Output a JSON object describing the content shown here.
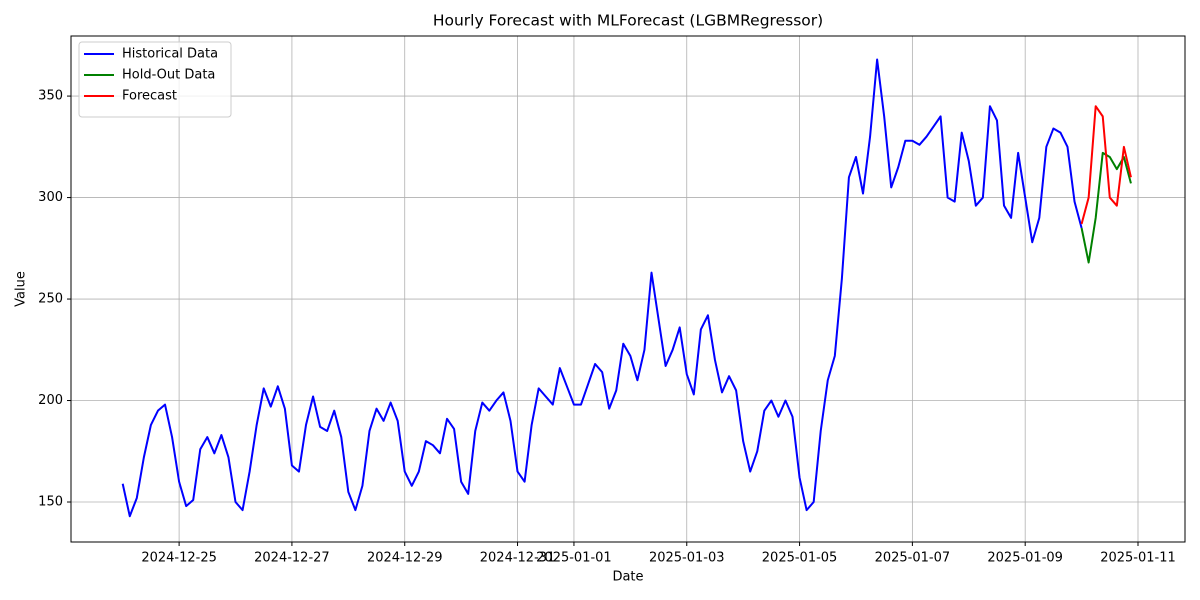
{
  "chart_data": {
    "type": "line",
    "title": "Hourly Forecast with MLForecast (LGBMRegressor)",
    "x_label": "Date",
    "y_label": "Value",
    "xlim": [
      "2024-12-23 02:00",
      "2025-01-11 20:00"
    ],
    "xticks": [
      "2024-12-25",
      "2024-12-27",
      "2024-12-29",
      "2024-12-31",
      "2025-01-01",
      "2025-01-03",
      "2025-01-05",
      "2025-01-07",
      "2025-01-09",
      "2025-01-11"
    ],
    "ylim": [
      130.3,
      379.6
    ],
    "yticks": [
      150,
      200,
      250,
      300,
      350
    ],
    "grid": true,
    "legend": "upper left",
    "series": [
      {
        "name": "Historical Data",
        "color": "#0000ff",
        "x": [
          "2024-12-24 00:00",
          "2024-12-24 03:00",
          "2024-12-24 06:00",
          "2024-12-24 09:00",
          "2024-12-24 12:00",
          "2024-12-24 15:00",
          "2024-12-24 18:00",
          "2024-12-24 21:00",
          "2024-12-25 00:00",
          "2024-12-25 03:00",
          "2024-12-25 06:00",
          "2024-12-25 09:00",
          "2024-12-25 12:00",
          "2024-12-25 15:00",
          "2024-12-25 18:00",
          "2024-12-25 21:00",
          "2024-12-26 00:00",
          "2024-12-26 03:00",
          "2024-12-26 06:00",
          "2024-12-26 09:00",
          "2024-12-26 12:00",
          "2024-12-26 15:00",
          "2024-12-26 18:00",
          "2024-12-26 21:00",
          "2024-12-27 00:00",
          "2024-12-27 03:00",
          "2024-12-27 06:00",
          "2024-12-27 09:00",
          "2024-12-27 12:00",
          "2024-12-27 15:00",
          "2024-12-27 18:00",
          "2024-12-27 21:00",
          "2024-12-28 00:00",
          "2024-12-28 03:00",
          "2024-12-28 06:00",
          "2024-12-28 09:00",
          "2024-12-28 12:00",
          "2024-12-28 15:00",
          "2024-12-28 18:00",
          "2024-12-28 21:00",
          "2024-12-29 00:00",
          "2024-12-29 03:00",
          "2024-12-29 06:00",
          "2024-12-29 09:00",
          "2024-12-29 12:00",
          "2024-12-29 15:00",
          "2024-12-29 18:00",
          "2024-12-29 21:00",
          "2024-12-30 00:00",
          "2024-12-30 03:00",
          "2024-12-30 06:00",
          "2024-12-30 09:00",
          "2024-12-30 12:00",
          "2024-12-30 15:00",
          "2024-12-30 18:00",
          "2024-12-30 21:00",
          "2024-12-31 00:00",
          "2024-12-31 03:00",
          "2024-12-31 06:00",
          "2024-12-31 09:00",
          "2024-12-31 12:00",
          "2024-12-31 15:00",
          "2024-12-31 18:00",
          "2024-12-31 21:00",
          "2025-01-01 00:00",
          "2025-01-01 03:00",
          "2025-01-01 06:00",
          "2025-01-01 09:00",
          "2025-01-01 12:00",
          "2025-01-01 15:00",
          "2025-01-01 18:00",
          "2025-01-01 21:00",
          "2025-01-02 00:00",
          "2025-01-02 03:00",
          "2025-01-02 06:00",
          "2025-01-02 09:00",
          "2025-01-02 12:00",
          "2025-01-02 15:00",
          "2025-01-02 18:00",
          "2025-01-02 21:00",
          "2025-01-03 00:00",
          "2025-01-03 03:00",
          "2025-01-03 06:00",
          "2025-01-03 09:00",
          "2025-01-03 12:00",
          "2025-01-03 15:00",
          "2025-01-03 18:00",
          "2025-01-03 21:00",
          "2025-01-04 00:00",
          "2025-01-04 03:00",
          "2025-01-04 06:00",
          "2025-01-04 09:00",
          "2025-01-04 12:00",
          "2025-01-04 15:00",
          "2025-01-04 18:00",
          "2025-01-04 21:00",
          "2025-01-05 00:00",
          "2025-01-05 03:00",
          "2025-01-05 06:00",
          "2025-01-05 09:00",
          "2025-01-05 12:00",
          "2025-01-05 15:00",
          "2025-01-05 18:00",
          "2025-01-05 21:00",
          "2025-01-06 00:00",
          "2025-01-06 03:00",
          "2025-01-06 06:00",
          "2025-01-06 09:00",
          "2025-01-06 12:00",
          "2025-01-06 15:00",
          "2025-01-06 18:00",
          "2025-01-06 21:00",
          "2025-01-07 00:00",
          "2025-01-07 03:00",
          "2025-01-07 06:00",
          "2025-01-07 09:00",
          "2025-01-07 12:00",
          "2025-01-07 15:00",
          "2025-01-07 18:00",
          "2025-01-07 21:00",
          "2025-01-08 00:00",
          "2025-01-08 03:00",
          "2025-01-08 06:00",
          "2025-01-08 09:00",
          "2025-01-08 12:00",
          "2025-01-08 15:00",
          "2025-01-08 18:00",
          "2025-01-08 21:00",
          "2025-01-09 00:00",
          "2025-01-09 03:00",
          "2025-01-09 06:00",
          "2025-01-09 09:00",
          "2025-01-09 12:00",
          "2025-01-09 15:00",
          "2025-01-09 18:00",
          "2025-01-09 21:00",
          "2025-01-10 00:00"
        ],
        "values": [
          159,
          143,
          152,
          172,
          188,
          195,
          198,
          182,
          160,
          148,
          151,
          176,
          182,
          174,
          183,
          172,
          150,
          146,
          165,
          188,
          206,
          197,
          207,
          196,
          168,
          165,
          188,
          202,
          187,
          185,
          195,
          182,
          155,
          146,
          158,
          185,
          196,
          190,
          199,
          190,
          165,
          158,
          165,
          180,
          178,
          174,
          191,
          186,
          160,
          154,
          185,
          199,
          195,
          200,
          204,
          190,
          165,
          160,
          188,
          206,
          202,
          198,
          216,
          207,
          198,
          198,
          208,
          218,
          214,
          196,
          205,
          228,
          222,
          210,
          225,
          263,
          240,
          217,
          225,
          236,
          213,
          203,
          235,
          242,
          220,
          204,
          212,
          205,
          180,
          165,
          175,
          195,
          200,
          192,
          200,
          192,
          162,
          146,
          150,
          185,
          210,
          222,
          260,
          310,
          320,
          302,
          330,
          368,
          340,
          305,
          315,
          328,
          328,
          326,
          330,
          335,
          340,
          300,
          298,
          332,
          318,
          296,
          300,
          345,
          338,
          296,
          290,
          322,
          300,
          278,
          290,
          325,
          334,
          332,
          325,
          298,
          285
        ]
      },
      {
        "name": "Hold-Out Data",
        "color": "#008000",
        "x": [
          "2025-01-10 00:00",
          "2025-01-10 03:00",
          "2025-01-10 06:00",
          "2025-01-10 09:00",
          "2025-01-10 12:00",
          "2025-01-10 15:00",
          "2025-01-10 18:00",
          "2025-01-10 21:00"
        ],
        "values": [
          285,
          268,
          290,
          322,
          320,
          314,
          320,
          307
        ]
      },
      {
        "name": "Forecast",
        "color": "#ff0000",
        "x": [
          "2025-01-10 00:00",
          "2025-01-10 03:00",
          "2025-01-10 06:00",
          "2025-01-10 09:00",
          "2025-01-10 12:00",
          "2025-01-10 15:00",
          "2025-01-10 18:00",
          "2025-01-10 21:00"
        ],
        "values": [
          287,
          300,
          345,
          340,
          300,
          296,
          325,
          310
        ]
      }
    ]
  }
}
